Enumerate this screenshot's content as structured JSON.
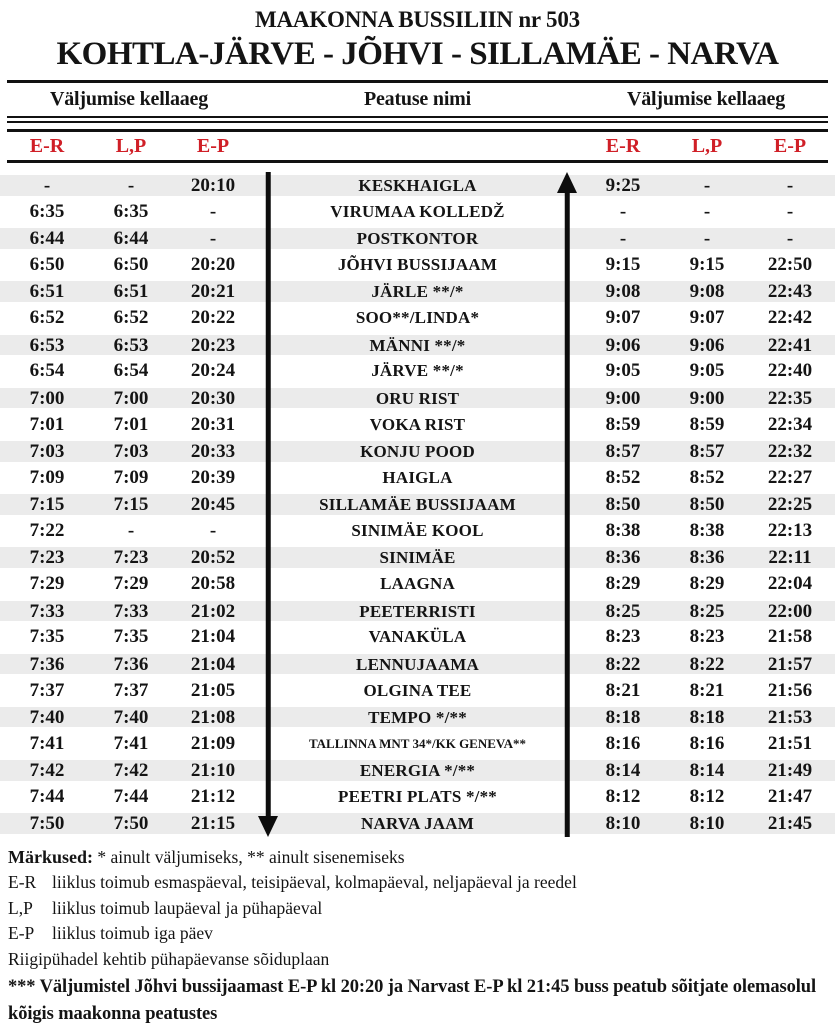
{
  "title": "MAAKONNA BUSSILIIN nr 503",
  "subtitle": "KOHTLA-JÄRVE - JÕHVI - SILLAMÄE - NARVA",
  "colors": {
    "accent_red": "#d01f27",
    "stripe": "#ebebeb",
    "ink": "#141414"
  },
  "header": {
    "left_label": "Väljumise kellaaeg",
    "center_label": "Peatuse nimi",
    "right_label": "Väljumise kellaaeg"
  },
  "columns": {
    "left": [
      "E-R",
      "L,P",
      "E-P"
    ],
    "right": [
      "E-R",
      "L,P",
      "E-P"
    ]
  },
  "arrows": {
    "left_direction": "down",
    "right_direction": "up"
  },
  "rows": [
    {
      "left": [
        "-",
        "-",
        "20:10"
      ],
      "stop": "KESKHAIGLA",
      "right": [
        "9:25",
        "-",
        "-"
      ],
      "small": false
    },
    {
      "left": [
        "6:35",
        "6:35",
        "-"
      ],
      "stop": "VIRUMAA KOLLEDŽ",
      "right": [
        "-",
        "-",
        "-"
      ],
      "small": false
    },
    {
      "left": [
        "6:44",
        "6:44",
        "-"
      ],
      "stop": "POSTKONTOR",
      "right": [
        "-",
        "-",
        "-"
      ],
      "small": false
    },
    {
      "left": [
        "6:50",
        "6:50",
        "20:20"
      ],
      "stop": "JÕHVI BUSSIJAAM",
      "right": [
        "9:15",
        "9:15",
        "22:50"
      ],
      "small": false
    },
    {
      "left": [
        "6:51",
        "6:51",
        "20:21"
      ],
      "stop": "JÄRLE **/*",
      "right": [
        "9:08",
        "9:08",
        "22:43"
      ],
      "small": false
    },
    {
      "left": [
        "6:52",
        "6:52",
        "20:22"
      ],
      "stop": "SOO**/LINDA*",
      "right": [
        "9:07",
        "9:07",
        "22:42"
      ],
      "small": false
    },
    {
      "left": [
        "6:53",
        "6:53",
        "20:23"
      ],
      "stop": "MÄNNI **/*",
      "right": [
        "9:06",
        "9:06",
        "22:41"
      ],
      "small": false
    },
    {
      "left": [
        "6:54",
        "6:54",
        "20:24"
      ],
      "stop": "JÄRVE **/*",
      "right": [
        "9:05",
        "9:05",
        "22:40"
      ],
      "small": false
    },
    {
      "left": [
        "7:00",
        "7:00",
        "20:30"
      ],
      "stop": "ORU RIST",
      "right": [
        "9:00",
        "9:00",
        "22:35"
      ],
      "small": false
    },
    {
      "left": [
        "7:01",
        "7:01",
        "20:31"
      ],
      "stop": "VOKA RIST",
      "right": [
        "8:59",
        "8:59",
        "22:34"
      ],
      "small": false
    },
    {
      "left": [
        "7:03",
        "7:03",
        "20:33"
      ],
      "stop": "KONJU POOD",
      "right": [
        "8:57",
        "8:57",
        "22:32"
      ],
      "small": false
    },
    {
      "left": [
        "7:09",
        "7:09",
        "20:39"
      ],
      "stop": "HAIGLA",
      "right": [
        "8:52",
        "8:52",
        "22:27"
      ],
      "small": false
    },
    {
      "left": [
        "7:15",
        "7:15",
        "20:45"
      ],
      "stop": "SILLAMÄE BUSSIJAAM",
      "right": [
        "8:50",
        "8:50",
        "22:25"
      ],
      "small": false
    },
    {
      "left": [
        "7:22",
        "-",
        "-"
      ],
      "stop": "SINIMÄE KOOL",
      "right": [
        "8:38",
        "8:38",
        "22:13"
      ],
      "small": false
    },
    {
      "left": [
        "7:23",
        "7:23",
        "20:52"
      ],
      "stop": "SINIMÄE",
      "right": [
        "8:36",
        "8:36",
        "22:11"
      ],
      "small": false
    },
    {
      "left": [
        "7:29",
        "7:29",
        "20:58"
      ],
      "stop": "LAAGNA",
      "right": [
        "8:29",
        "8:29",
        "22:04"
      ],
      "small": false
    },
    {
      "left": [
        "7:33",
        "7:33",
        "21:02"
      ],
      "stop": "PEETERRISTI",
      "right": [
        "8:25",
        "8:25",
        "22:00"
      ],
      "small": false
    },
    {
      "left": [
        "7:35",
        "7:35",
        "21:04"
      ],
      "stop": "VANAKÜLA",
      "right": [
        "8:23",
        "8:23",
        "21:58"
      ],
      "small": false
    },
    {
      "left": [
        "7:36",
        "7:36",
        "21:04"
      ],
      "stop": "LENNUJAAMA",
      "right": [
        "8:22",
        "8:22",
        "21:57"
      ],
      "small": false
    },
    {
      "left": [
        "7:37",
        "7:37",
        "21:05"
      ],
      "stop": "OLGINA TEE",
      "right": [
        "8:21",
        "8:21",
        "21:56"
      ],
      "small": false
    },
    {
      "left": [
        "7:40",
        "7:40",
        "21:08"
      ],
      "stop": "TEMPO */**",
      "right": [
        "8:18",
        "8:18",
        "21:53"
      ],
      "small": false
    },
    {
      "left": [
        "7:41",
        "7:41",
        "21:09"
      ],
      "stop": "TALLINNA MNT 34*/KK GENEVA**",
      "right": [
        "8:16",
        "8:16",
        "21:51"
      ],
      "small": true
    },
    {
      "left": [
        "7:42",
        "7:42",
        "21:10"
      ],
      "stop": "ENERGIA */**",
      "right": [
        "8:14",
        "8:14",
        "21:49"
      ],
      "small": false
    },
    {
      "left": [
        "7:44",
        "7:44",
        "21:12"
      ],
      "stop": "PEETRI PLATS */**",
      "right": [
        "8:12",
        "8:12",
        "21:47"
      ],
      "small": false
    },
    {
      "left": [
        "7:50",
        "7:50",
        "21:15"
      ],
      "stop": "NARVA JAAM",
      "right": [
        "8:10",
        "8:10",
        "21:45"
      ],
      "small": false
    }
  ],
  "notes": {
    "heading": "Märkused:",
    "heading_rest": " * ainult väljumiseks, ** ainult sisenemiseks",
    "lines": [
      {
        "term": "E-R",
        "text": "liiklus toimub esmaspäeval, teisipäeval, kolmapäeval, neljapäeval ja reedel"
      },
      {
        "term": "L,P",
        "text": "liiklus toimub laupäeval ja pühapäeval"
      },
      {
        "term": "E-P",
        "text": "liiklus toimub iga päev"
      },
      {
        "term": "",
        "text": "Riigipühadel kehtib pühapäevanse sõiduplaan"
      }
    ],
    "bold_note": "*** Väljumistel Jõhvi bussijaamast E-P kl 20:20 ja Narvast E-P kl 21:45 buss peatub sõitjate olemasolul kõigis maakonna peatustes"
  }
}
